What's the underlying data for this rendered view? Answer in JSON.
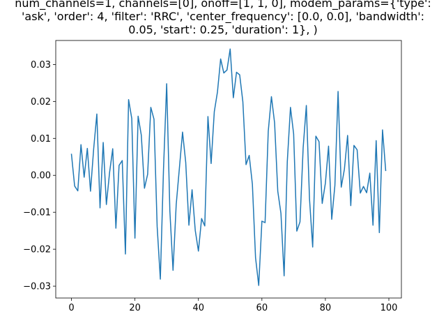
{
  "chart_data": {
    "type": "line",
    "title_lines": [
      "num_channels=1, channels=[0], onoff=[1, 1, 0], modem_params={'type':",
      "'ask', 'order': 4, 'filter': 'RRC', 'center_frequency': [0.0, 0.0], 'bandwidth':",
      "0.05, 'start': 0.25, 'duration': 1}, )"
    ],
    "xlabel": "",
    "ylabel": "",
    "xlim": [
      -4.95,
      103.95
    ],
    "ylim": [
      -0.0332,
      0.0365
    ],
    "xticks": [
      0,
      20,
      40,
      60,
      80,
      100
    ],
    "yticks": [
      -0.03,
      -0.02,
      -0.01,
      0.0,
      0.01,
      0.02,
      0.03
    ],
    "ytick_labels": [
      "−0.03",
      "−0.02",
      "−0.01",
      "0.00",
      "0.01",
      "0.02",
      "0.03"
    ],
    "grid": false,
    "legend": "none",
    "series": [
      {
        "color": "#1f77b4",
        "x": [
          0,
          1,
          2,
          3,
          4,
          5,
          6,
          7,
          8,
          9,
          10,
          11,
          12,
          13,
          14,
          15,
          16,
          17,
          18,
          19,
          20,
          21,
          22,
          23,
          24,
          25,
          26,
          27,
          28,
          29,
          30,
          31,
          32,
          33,
          34,
          35,
          36,
          37,
          38,
          39,
          40,
          41,
          42,
          43,
          44,
          45,
          46,
          47,
          48,
          49,
          50,
          51,
          52,
          53,
          54,
          55,
          56,
          57,
          58,
          59,
          60,
          61,
          62,
          63,
          64,
          65,
          66,
          67,
          68,
          69,
          70,
          71,
          72,
          73,
          74,
          75,
          76,
          77,
          78,
          79,
          80,
          81,
          82,
          83,
          84,
          85,
          86,
          87,
          88,
          89,
          90,
          91,
          92,
          93,
          94,
          95,
          96,
          97,
          98,
          99
        ],
        "y": [
          0.0057,
          -0.0029,
          -0.0042,
          0.0083,
          -0.0005,
          0.0073,
          -0.0043,
          0.0072,
          0.0166,
          -0.0088,
          0.0089,
          -0.0079,
          0.0007,
          0.0072,
          -0.0143,
          0.0027,
          0.004,
          -0.0213,
          0.0205,
          0.0154,
          -0.017,
          0.016,
          0.0109,
          -0.0035,
          0.0003,
          0.0184,
          0.0152,
          -0.0139,
          -0.0281,
          0.0017,
          0.0248,
          -0.0096,
          -0.0257,
          -0.0079,
          0.0019,
          0.0117,
          0.0035,
          -0.0135,
          -0.0039,
          -0.0149,
          -0.0205,
          -0.0117,
          -0.0137,
          0.0159,
          0.0032,
          0.0172,
          0.0226,
          0.0315,
          0.0277,
          0.0285,
          0.0342,
          0.021,
          0.0279,
          0.0272,
          0.0199,
          0.0029,
          0.0054,
          -0.0024,
          -0.0223,
          -0.0298,
          -0.0124,
          -0.0128,
          0.0119,
          0.0213,
          0.0142,
          -0.0043,
          -0.0103,
          -0.0272,
          0.0037,
          0.0184,
          0.0112,
          -0.0151,
          -0.0126,
          0.0075,
          0.0189,
          -0.0064,
          -0.0194,
          0.0106,
          0.0091,
          -0.0076,
          -0.0021,
          0.0079,
          -0.0119,
          -0.0027,
          0.0227,
          -0.0032,
          0.0017,
          0.0108,
          -0.0082,
          0.0081,
          0.0069,
          -0.0048,
          -0.003,
          -0.0047,
          0.0006,
          -0.0135,
          0.0094,
          -0.0155,
          0.0123,
          0.0013
        ]
      }
    ]
  }
}
